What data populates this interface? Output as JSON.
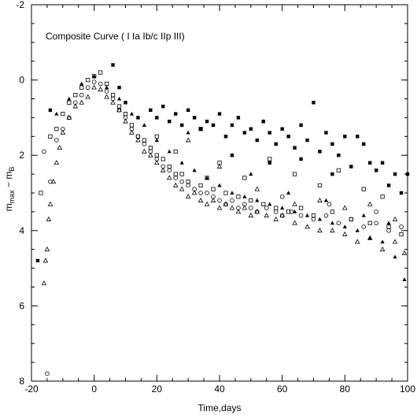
{
  "chart_data": {
    "type": "scatter",
    "title": "",
    "annotation": "Composite Curve (  I   Ia Ib/c  IIp  III)",
    "xlabel": "Time,days",
    "ylabel_main": "m",
    "ylabel_sub1": "max",
    "ylabel_mid": " − m",
    "ylabel_sub2": "B",
    "xlim": [
      -20,
      100
    ],
    "ylim": [
      -2,
      8
    ],
    "y_inverted": true,
    "xticks": [
      -20,
      0,
      20,
      40,
      60,
      80,
      100
    ],
    "yticks": [
      -2,
      0,
      2,
      4,
      6,
      8
    ],
    "xtick_labels": [
      "-20",
      "0",
      "20",
      "40",
      "60",
      "80",
      "100"
    ],
    "ytick_labels": [
      "-2",
      "0",
      "2",
      "4",
      "6",
      "8"
    ],
    "grid": false,
    "series": [
      {
        "marker": "open-triangle",
        "points": [
          [
            -16,
            5.4
          ],
          [
            -15.5,
            4.8
          ],
          [
            -15,
            4.5
          ],
          [
            -14.5,
            3.7
          ],
          [
            -14,
            3.3
          ],
          [
            -13,
            2.7
          ],
          [
            -12,
            2.2
          ],
          [
            -11,
            1.8
          ],
          [
            -10,
            1.4
          ],
          [
            -8,
            1.0
          ],
          [
            -6,
            0.7
          ],
          [
            -4,
            0.6
          ],
          [
            -2,
            0.45
          ],
          [
            0,
            0.2
          ],
          [
            2,
            0.25
          ],
          [
            4,
            0.45
          ],
          [
            6,
            0.6
          ],
          [
            8,
            0.8
          ],
          [
            10,
            1.1
          ],
          [
            12,
            1.4
          ],
          [
            14,
            1.6
          ],
          [
            16,
            1.9
          ],
          [
            18,
            2.0
          ],
          [
            20,
            2.2
          ],
          [
            22,
            2.4
          ],
          [
            24,
            2.6
          ],
          [
            26,
            2.8
          ],
          [
            28,
            2.9
          ],
          [
            30,
            3.1
          ],
          [
            32,
            3.0
          ],
          [
            34,
            3.2
          ],
          [
            36,
            3.3
          ],
          [
            38,
            3.2
          ],
          [
            40,
            3.4
          ],
          [
            42,
            3.3
          ],
          [
            44,
            3.4
          ],
          [
            46,
            3.5
          ],
          [
            48,
            3.4
          ],
          [
            50,
            3.6
          ],
          [
            52,
            3.5
          ],
          [
            55,
            3.6
          ],
          [
            58,
            3.7
          ],
          [
            60,
            3.6
          ],
          [
            64,
            3.8
          ],
          [
            68,
            3.9
          ],
          [
            72,
            4.0
          ],
          [
            76,
            4.0
          ],
          [
            80,
            4.1
          ],
          [
            84,
            4.3
          ],
          [
            88,
            4.2
          ],
          [
            92,
            4.5
          ],
          [
            96,
            4.3
          ],
          [
            99,
            4.6
          ],
          [
            30,
            1.6
          ],
          [
            40,
            2.3
          ],
          [
            52,
            2.9
          ],
          [
            64,
            3.3
          ],
          [
            72,
            3.2
          ],
          [
            80,
            3.4
          ],
          [
            88,
            3.3
          ],
          [
            96,
            3.7
          ]
        ]
      },
      {
        "marker": "open-circle",
        "points": [
          [
            -16,
            1.9
          ],
          [
            -14,
            2.7
          ],
          [
            -12,
            1.6
          ],
          [
            -10,
            1.3
          ],
          [
            -8,
            1.0
          ],
          [
            -6,
            0.6
          ],
          [
            -4,
            0.4
          ],
          [
            -2,
            0.2
          ],
          [
            0,
            0.05
          ],
          [
            2,
            0.1
          ],
          [
            4,
            0.3
          ],
          [
            6,
            0.5
          ],
          [
            8,
            0.8
          ],
          [
            10,
            1.0
          ],
          [
            12,
            1.3
          ],
          [
            14,
            1.5
          ],
          [
            16,
            1.7
          ],
          [
            18,
            1.9
          ],
          [
            20,
            2.1
          ],
          [
            22,
            2.3
          ],
          [
            24,
            2.4
          ],
          [
            26,
            2.6
          ],
          [
            28,
            2.7
          ],
          [
            30,
            2.8
          ],
          [
            32,
            2.9
          ],
          [
            34,
            3.0
          ],
          [
            36,
            3.0
          ],
          [
            38,
            3.1
          ],
          [
            40,
            3.2
          ],
          [
            42,
            3.3
          ],
          [
            44,
            3.2
          ],
          [
            46,
            3.4
          ],
          [
            48,
            3.3
          ],
          [
            50,
            3.4
          ],
          [
            52,
            3.5
          ],
          [
            55,
            3.4
          ],
          [
            58,
            3.5
          ],
          [
            60,
            3.6
          ],
          [
            63,
            3.5
          ],
          [
            66,
            3.6
          ],
          [
            70,
            3.7
          ],
          [
            74,
            3.6
          ],
          [
            78,
            3.8
          ],
          [
            82,
            3.7
          ],
          [
            86,
            3.9
          ],
          [
            90,
            3.8
          ],
          [
            94,
            4.0
          ],
          [
            98,
            3.9
          ],
          [
            -15,
            7.8
          ],
          [
            60,
            3.1
          ],
          [
            75,
            3.3
          ],
          [
            90,
            3.5
          ]
        ]
      },
      {
        "marker": "open-square",
        "points": [
          [
            -12,
            1.3
          ],
          [
            -10,
            0.9
          ],
          [
            -8,
            0.6
          ],
          [
            -6,
            0.4
          ],
          [
            -4,
            0.2
          ],
          [
            -2,
            0.0
          ],
          [
            0,
            -0.1
          ],
          [
            2,
            -0.2
          ],
          [
            4,
            0.1
          ],
          [
            6,
            0.4
          ],
          [
            8,
            0.7
          ],
          [
            10,
            0.9
          ],
          [
            12,
            1.2
          ],
          [
            14,
            1.5
          ],
          [
            16,
            1.6
          ],
          [
            18,
            1.8
          ],
          [
            20,
            2.0
          ],
          [
            22,
            2.1
          ],
          [
            24,
            2.3
          ],
          [
            26,
            2.5
          ],
          [
            28,
            2.5
          ],
          [
            30,
            2.7
          ],
          [
            34,
            2.8
          ],
          [
            38,
            2.9
          ],
          [
            42,
            3.0
          ],
          [
            46,
            3.1
          ],
          [
            50,
            3.2
          ],
          [
            54,
            3.3
          ],
          [
            58,
            3.4
          ],
          [
            62,
            3.5
          ],
          [
            66,
            3.4
          ],
          [
            70,
            3.6
          ],
          [
            76,
            3.5
          ],
          [
            82,
            3.7
          ],
          [
            88,
            3.8
          ],
          [
            94,
            3.9
          ],
          [
            98,
            4.1
          ],
          [
            20,
            1.5
          ],
          [
            26,
            1.9
          ],
          [
            34,
            1.3
          ],
          [
            40,
            2.2
          ],
          [
            48,
            2.6
          ],
          [
            56,
            2.1
          ],
          [
            64,
            2.5
          ],
          [
            72,
            2.8
          ],
          [
            78,
            2.4
          ],
          [
            86,
            2.9
          ],
          [
            92,
            3.1
          ],
          [
            -17,
            3.0
          ],
          [
            -14,
            1.5
          ],
          [
            36,
            2.6
          ]
        ]
      },
      {
        "marker": "filled-square",
        "points": [
          [
            -18,
            4.8
          ],
          [
            -14,
            0.8
          ],
          [
            6,
            -0.4
          ],
          [
            8,
            0.2
          ],
          [
            10,
            0.6
          ],
          [
            14,
            1.0
          ],
          [
            18,
            0.8
          ],
          [
            20,
            1.0
          ],
          [
            22,
            0.7
          ],
          [
            24,
            1.1
          ],
          [
            26,
            0.9
          ],
          [
            28,
            1.2
          ],
          [
            30,
            0.8
          ],
          [
            32,
            1.0
          ],
          [
            34,
            1.3
          ],
          [
            36,
            1.1
          ],
          [
            38,
            1.2
          ],
          [
            40,
            0.9
          ],
          [
            42,
            1.5
          ],
          [
            44,
            1.2
          ],
          [
            46,
            1.0
          ],
          [
            48,
            1.4
          ],
          [
            50,
            1.3
          ],
          [
            52,
            1.6
          ],
          [
            54,
            1.1
          ],
          [
            56,
            1.4
          ],
          [
            58,
            1.7
          ],
          [
            60,
            1.3
          ],
          [
            62,
            1.5
          ],
          [
            64,
            1.8
          ],
          [
            66,
            1.2
          ],
          [
            68,
            1.6
          ],
          [
            70,
            0.6
          ],
          [
            72,
            1.9
          ],
          [
            74,
            1.4
          ],
          [
            76,
            1.7
          ],
          [
            78,
            2.0
          ],
          [
            80,
            1.5
          ],
          [
            82,
            2.3
          ],
          [
            84,
            1.5
          ],
          [
            86,
            1.7
          ],
          [
            88,
            2.2
          ],
          [
            90,
            2.4
          ],
          [
            92,
            2.2
          ],
          [
            94,
            2.8
          ],
          [
            96,
            2.5
          ],
          [
            98,
            3.0
          ],
          [
            100,
            2.5
          ],
          [
            44,
            2.0
          ],
          [
            56,
            2.2
          ],
          [
            66,
            2.1
          ],
          [
            76,
            2.5
          ]
        ]
      },
      {
        "marker": "filled-triangle",
        "points": [
          [
            -12,
            0.9
          ],
          [
            -8,
            0.5
          ],
          [
            -4,
            0.1
          ],
          [
            0,
            -0.1
          ],
          [
            4,
            0.2
          ],
          [
            8,
            0.5
          ],
          [
            12,
            0.9
          ],
          [
            16,
            1.2
          ],
          [
            20,
            1.6
          ],
          [
            24,
            1.9
          ],
          [
            28,
            2.2
          ],
          [
            32,
            2.4
          ],
          [
            36,
            2.6
          ],
          [
            40,
            2.8
          ],
          [
            44,
            3.0
          ],
          [
            48,
            3.1
          ],
          [
            52,
            3.2
          ],
          [
            56,
            3.3
          ],
          [
            60,
            3.4
          ],
          [
            64,
            3.5
          ],
          [
            68,
            3.6
          ],
          [
            72,
            3.7
          ],
          [
            76,
            3.8
          ],
          [
            80,
            3.9
          ],
          [
            84,
            4.0
          ],
          [
            88,
            4.2
          ],
          [
            92,
            4.3
          ],
          [
            96,
            4.7
          ],
          [
            99,
            5.3
          ],
          [
            54,
            1.1
          ],
          [
            62,
            3.0
          ],
          [
            74,
            3.2
          ],
          [
            86,
            3.6
          ],
          [
            94,
            3.8
          ],
          [
            50,
            2.5
          ],
          [
            30,
            1.4
          ]
        ]
      }
    ]
  }
}
